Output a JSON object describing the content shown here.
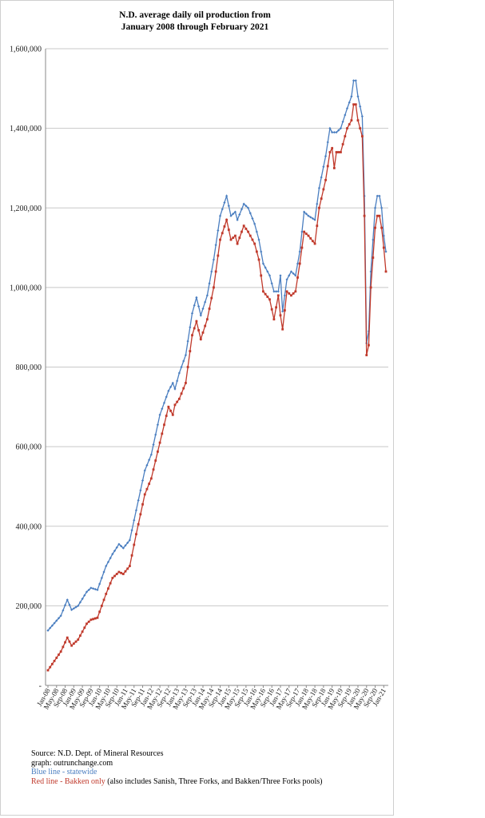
{
  "chart_data": {
    "type": "line",
    "title_line1": "N.D. average daily oil production from",
    "title_line2": "January 2008 through February 2021",
    "y_ticks": [
      "-",
      "200,000",
      "400,000",
      "600,000",
      "800,000",
      "1,000,000",
      "1,200,000",
      "1,400,000",
      "1,600,000"
    ],
    "ylim": [
      0,
      1600000
    ],
    "x_tick_labels": [
      "Jan-08",
      "May-08",
      "Sep-08",
      "Jan-09",
      "May-09",
      "Sep-09",
      "Jan-10",
      "May-10",
      "Sep-10",
      "Jan-11",
      "May-11",
      "Sep-11",
      "Jan-12",
      "May-12",
      "Sep-12",
      "Jan-13",
      "May-13",
      "Sep-13",
      "Jan-14",
      "May-14",
      "Sep-14",
      "Jan-15",
      "May-15",
      "Sep-15",
      "Jan-16",
      "May-16",
      "Sep-16",
      "Jan-17",
      "May-17",
      "Sep-17",
      "Jan-18",
      "May-18",
      "Sep-18",
      "Jan-19",
      "May-19",
      "Sep-19",
      "Jan-20",
      "May-20",
      "Sep-20",
      "Jan-21"
    ],
    "x_start": "Jan-08",
    "x_end": "Feb-21",
    "grid": true,
    "colors": {
      "statewide": "#4a7ec0",
      "bakken": "#c0392b"
    },
    "series": [
      {
        "name": "Blue line - statewide",
        "color": "#4a7ec0",
        "anchors": [
          [
            "Jan-08",
            138000
          ],
          [
            "Jul-08",
            175000
          ],
          [
            "Oct-08",
            215000
          ],
          [
            "Dec-08",
            190000
          ],
          [
            "Mar-09",
            200000
          ],
          [
            "Jul-09",
            235000
          ],
          [
            "Sep-09",
            245000
          ],
          [
            "Dec-09",
            240000
          ],
          [
            "Apr-10",
            300000
          ],
          [
            "Jul-10",
            330000
          ],
          [
            "Oct-10",
            355000
          ],
          [
            "Dec-10",
            345000
          ],
          [
            "Mar-11",
            365000
          ],
          [
            "Jun-11",
            440000
          ],
          [
            "Oct-11",
            540000
          ],
          [
            "Jan-12",
            580000
          ],
          [
            "May-12",
            680000
          ],
          [
            "Sep-12",
            740000
          ],
          [
            "Nov-12",
            760000
          ],
          [
            "Dec-12",
            745000
          ],
          [
            "Feb-13",
            785000
          ],
          [
            "May-13",
            830000
          ],
          [
            "Aug-13",
            935000
          ],
          [
            "Oct-13",
            975000
          ],
          [
            "Dec-13",
            930000
          ],
          [
            "Mar-14",
            980000
          ],
          [
            "Jun-14",
            1070000
          ],
          [
            "Sep-14",
            1180000
          ],
          [
            "Dec-14",
            1230000
          ],
          [
            "Feb-15",
            1180000
          ],
          [
            "Apr-15",
            1190000
          ],
          [
            "May-15",
            1170000
          ],
          [
            "Aug-15",
            1210000
          ],
          [
            "Oct-15",
            1200000
          ],
          [
            "Jan-16",
            1160000
          ],
          [
            "Mar-16",
            1120000
          ],
          [
            "May-16",
            1060000
          ],
          [
            "Aug-16",
            1030000
          ],
          [
            "Oct-16",
            990000
          ],
          [
            "Dec-16",
            990000
          ],
          [
            "Jan-17",
            1030000
          ],
          [
            "Feb-17",
            940000
          ],
          [
            "Apr-17",
            1020000
          ],
          [
            "Jun-17",
            1040000
          ],
          [
            "Aug-17",
            1030000
          ],
          [
            "Oct-17",
            1090000
          ],
          [
            "Dec-17",
            1190000
          ],
          [
            "Feb-18",
            1180000
          ],
          [
            "May-18",
            1170000
          ],
          [
            "Jul-18",
            1250000
          ],
          [
            "Oct-18",
            1330000
          ],
          [
            "Dec-18",
            1400000
          ],
          [
            "Jan-19",
            1390000
          ],
          [
            "Mar-19",
            1390000
          ],
          [
            "May-19",
            1400000
          ],
          [
            "Aug-19",
            1450000
          ],
          [
            "Oct-19",
            1480000
          ],
          [
            "Nov-19",
            1520000
          ],
          [
            "Dec-19",
            1520000
          ],
          [
            "Jan-20",
            1480000
          ],
          [
            "Mar-20",
            1430000
          ],
          [
            "Apr-20",
            1230000
          ],
          [
            "May-20",
            860000
          ],
          [
            "Jun-20",
            890000
          ],
          [
            "Jul-20",
            1040000
          ],
          [
            "Sep-20",
            1200000
          ],
          [
            "Oct-20",
            1230000
          ],
          [
            "Nov-20",
            1230000
          ],
          [
            "Dec-20",
            1200000
          ],
          [
            "Jan-21",
            1130000
          ],
          [
            "Feb-21",
            1090000
          ]
        ]
      },
      {
        "name": "Red line - Bakken only",
        "color": "#c0392b",
        "anchors": [
          [
            "Jan-08",
            38000
          ],
          [
            "Jul-08",
            85000
          ],
          [
            "Oct-08",
            120000
          ],
          [
            "Dec-08",
            100000
          ],
          [
            "Mar-09",
            115000
          ],
          [
            "Jul-09",
            155000
          ],
          [
            "Sep-09",
            165000
          ],
          [
            "Dec-09",
            170000
          ],
          [
            "Apr-10",
            230000
          ],
          [
            "Jul-10",
            270000
          ],
          [
            "Oct-10",
            285000
          ],
          [
            "Dec-10",
            280000
          ],
          [
            "Mar-11",
            300000
          ],
          [
            "Jun-11",
            380000
          ],
          [
            "Oct-11",
            480000
          ],
          [
            "Jan-12",
            520000
          ],
          [
            "May-12",
            610000
          ],
          [
            "Sep-12",
            700000
          ],
          [
            "Nov-12",
            680000
          ],
          [
            "Dec-12",
            705000
          ],
          [
            "Feb-13",
            720000
          ],
          [
            "May-13",
            760000
          ],
          [
            "Aug-13",
            880000
          ],
          [
            "Oct-13",
            915000
          ],
          [
            "Dec-13",
            870000
          ],
          [
            "Mar-14",
            920000
          ],
          [
            "Jun-14",
            1000000
          ],
          [
            "Sep-14",
            1120000
          ],
          [
            "Dec-14",
            1170000
          ],
          [
            "Feb-15",
            1120000
          ],
          [
            "Apr-15",
            1130000
          ],
          [
            "May-15",
            1110000
          ],
          [
            "Aug-15",
            1155000
          ],
          [
            "Oct-15",
            1140000
          ],
          [
            "Jan-16",
            1110000
          ],
          [
            "Mar-16",
            1070000
          ],
          [
            "May-16",
            990000
          ],
          [
            "Aug-16",
            970000
          ],
          [
            "Oct-16",
            920000
          ],
          [
            "Dec-16",
            980000
          ],
          [
            "Jan-17",
            930000
          ],
          [
            "Feb-17",
            895000
          ],
          [
            "Apr-17",
            990000
          ],
          [
            "Jun-17",
            980000
          ],
          [
            "Aug-17",
            990000
          ],
          [
            "Oct-17",
            1060000
          ],
          [
            "Dec-17",
            1140000
          ],
          [
            "Feb-18",
            1130000
          ],
          [
            "May-18",
            1110000
          ],
          [
            "Jul-18",
            1200000
          ],
          [
            "Oct-18",
            1270000
          ],
          [
            "Dec-18",
            1340000
          ],
          [
            "Jan-19",
            1350000
          ],
          [
            "Feb-19",
            1300000
          ],
          [
            "Mar-19",
            1340000
          ],
          [
            "May-19",
            1340000
          ],
          [
            "Aug-19",
            1400000
          ],
          [
            "Oct-19",
            1420000
          ],
          [
            "Nov-19",
            1460000
          ],
          [
            "Dec-19",
            1460000
          ],
          [
            "Jan-20",
            1420000
          ],
          [
            "Mar-20",
            1380000
          ],
          [
            "Apr-20",
            1180000
          ],
          [
            "May-20",
            830000
          ],
          [
            "Jun-20",
            855000
          ],
          [
            "Jul-20",
            1000000
          ],
          [
            "Sep-20",
            1150000
          ],
          [
            "Oct-20",
            1180000
          ],
          [
            "Nov-20",
            1180000
          ],
          [
            "Dec-20",
            1150000
          ],
          [
            "Jan-21",
            1100000
          ],
          [
            "Feb-21",
            1040000
          ]
        ]
      }
    ]
  },
  "footer": {
    "source": "Source: N.D. Dept. of Mineral Resources",
    "graph": "graph: outrunchange.com",
    "blue_label": "Blue line - statewide",
    "red_label": "Red line - Bakken only",
    "red_note": " (also includes Sanish, Three Forks, and Bakken/Three Forks pools)"
  }
}
